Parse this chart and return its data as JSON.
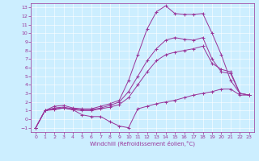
{
  "xlabel": "Windchill (Refroidissement éolien,°C)",
  "bg_color": "#cceeff",
  "line_color": "#993399",
  "xlim": [
    -0.5,
    23.5
  ],
  "ylim": [
    -1.5,
    13.5
  ],
  "xticks": [
    0,
    1,
    2,
    3,
    4,
    5,
    6,
    7,
    8,
    9,
    10,
    11,
    12,
    13,
    14,
    15,
    16,
    17,
    18,
    19,
    20,
    21,
    22,
    23
  ],
  "yticks": [
    -1,
    0,
    1,
    2,
    3,
    4,
    5,
    6,
    7,
    8,
    9,
    10,
    11,
    12,
    13
  ],
  "line1_x": [
    0,
    1,
    2,
    3,
    4,
    5,
    6,
    7,
    8,
    9,
    10,
    11,
    12,
    13,
    14,
    15,
    16,
    17,
    18,
    19,
    20,
    21,
    22,
    23
  ],
  "line1_y": [
    -1.0,
    1.0,
    1.1,
    1.3,
    1.1,
    0.5,
    0.3,
    0.3,
    -0.3,
    -0.8,
    -1.0,
    1.2,
    1.5,
    1.8,
    2.0,
    2.2,
    2.5,
    2.8,
    3.0,
    3.2,
    3.5,
    3.5,
    2.8,
    2.8
  ],
  "line2_x": [
    0,
    1,
    2,
    3,
    4,
    5,
    6,
    7,
    8,
    9,
    10,
    11,
    12,
    13,
    14,
    15,
    16,
    17,
    18,
    19,
    20,
    21,
    22,
    23
  ],
  "line2_y": [
    -1.0,
    1.0,
    1.5,
    1.6,
    1.3,
    1.2,
    1.2,
    1.5,
    1.8,
    2.2,
    4.5,
    7.5,
    10.5,
    12.5,
    13.2,
    12.3,
    12.2,
    12.2,
    12.3,
    10.0,
    7.5,
    4.5,
    3.0,
    2.8
  ],
  "line3_x": [
    0,
    1,
    2,
    3,
    4,
    5,
    6,
    7,
    8,
    9,
    10,
    11,
    12,
    13,
    14,
    15,
    16,
    17,
    18,
    19,
    20,
    21,
    22,
    23
  ],
  "line3_y": [
    -1.0,
    1.0,
    1.3,
    1.4,
    1.2,
    1.1,
    1.1,
    1.3,
    1.6,
    2.0,
    3.2,
    5.0,
    6.8,
    8.2,
    9.2,
    9.5,
    9.3,
    9.2,
    9.5,
    7.0,
    5.5,
    5.3,
    3.0,
    2.8
  ],
  "line4_x": [
    0,
    1,
    2,
    3,
    4,
    5,
    6,
    7,
    8,
    9,
    10,
    11,
    12,
    13,
    14,
    15,
    16,
    17,
    18,
    19,
    20,
    21,
    22,
    23
  ],
  "line4_y": [
    -1.0,
    1.0,
    1.2,
    1.3,
    1.1,
    1.0,
    1.0,
    1.2,
    1.4,
    1.7,
    2.5,
    4.0,
    5.5,
    6.8,
    7.5,
    7.8,
    8.0,
    8.2,
    8.5,
    6.5,
    5.8,
    5.5,
    3.0,
    2.8
  ],
  "xlabel_fontsize": 5,
  "tick_fontsize": 4.5,
  "linewidth": 0.7,
  "markersize": 2.5
}
